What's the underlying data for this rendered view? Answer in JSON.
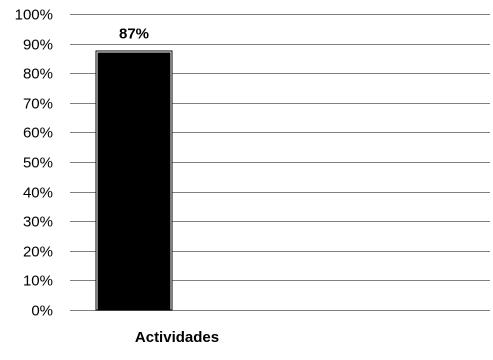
{
  "chart_data": {
    "type": "bar",
    "categories": [
      "Actividades"
    ],
    "values": [
      87
    ],
    "data_labels": [
      "87%"
    ],
    "ylim": [
      0,
      100
    ],
    "y_ticks": [
      0,
      10,
      20,
      30,
      40,
      50,
      60,
      70,
      80,
      90,
      100
    ],
    "y_tick_labels": [
      "0%",
      "10%",
      "20%",
      "30%",
      "40%",
      "50%",
      "60%",
      "70%",
      "80%",
      "90%",
      "100%"
    ],
    "title": "",
    "xlabel": "",
    "ylabel": "",
    "grid": true,
    "legend": "none",
    "colors": {
      "bar": "#000000",
      "grid": "#808080"
    }
  }
}
